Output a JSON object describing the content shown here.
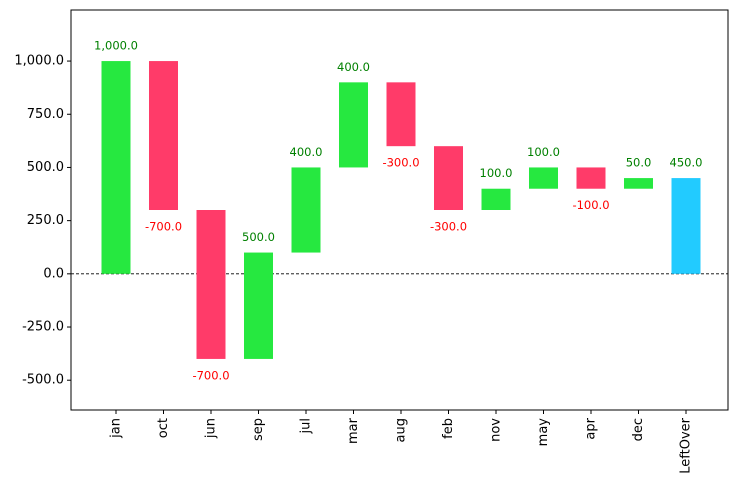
{
  "chart_data": {
    "type": "waterfall",
    "categories": [
      "jan",
      "oct",
      "jun",
      "sep",
      "jul",
      "mar",
      "aug",
      "feb",
      "nov",
      "may",
      "apr",
      "dec",
      "LeftOver"
    ],
    "values": [
      1000,
      -700,
      -700,
      500,
      400,
      400,
      -300,
      -300,
      100,
      100,
      -100,
      50,
      450
    ],
    "value_labels": [
      "1,000.0",
      "-700.0",
      "-700.0",
      "500.0",
      "400.0",
      "400.0",
      "-300.0",
      "-300.0",
      "100.0",
      "100.0",
      "-100.0",
      "50.0",
      "450.0"
    ],
    "is_total": [
      false,
      false,
      false,
      false,
      false,
      false,
      false,
      false,
      false,
      false,
      false,
      false,
      true
    ],
    "increase_color": "#26e840",
    "decrease_color": "#ff3b69",
    "total_color": "#22cbff",
    "increase_label_color": "green",
    "decrease_label_color": "red",
    "ylim": [
      -640,
      1240
    ],
    "yticks": [
      {
        "value": -500,
        "label": "-500.0"
      },
      {
        "value": -250,
        "label": "-250.0"
      },
      {
        "value": 0,
        "label": "0.0"
      },
      {
        "value": 250,
        "label": "250.0"
      },
      {
        "value": 500,
        "label": "500.0"
      },
      {
        "value": 750,
        "label": "750.0"
      },
      {
        "value": 1000,
        "label": "1,000.0"
      }
    ],
    "zero_line": true
  }
}
